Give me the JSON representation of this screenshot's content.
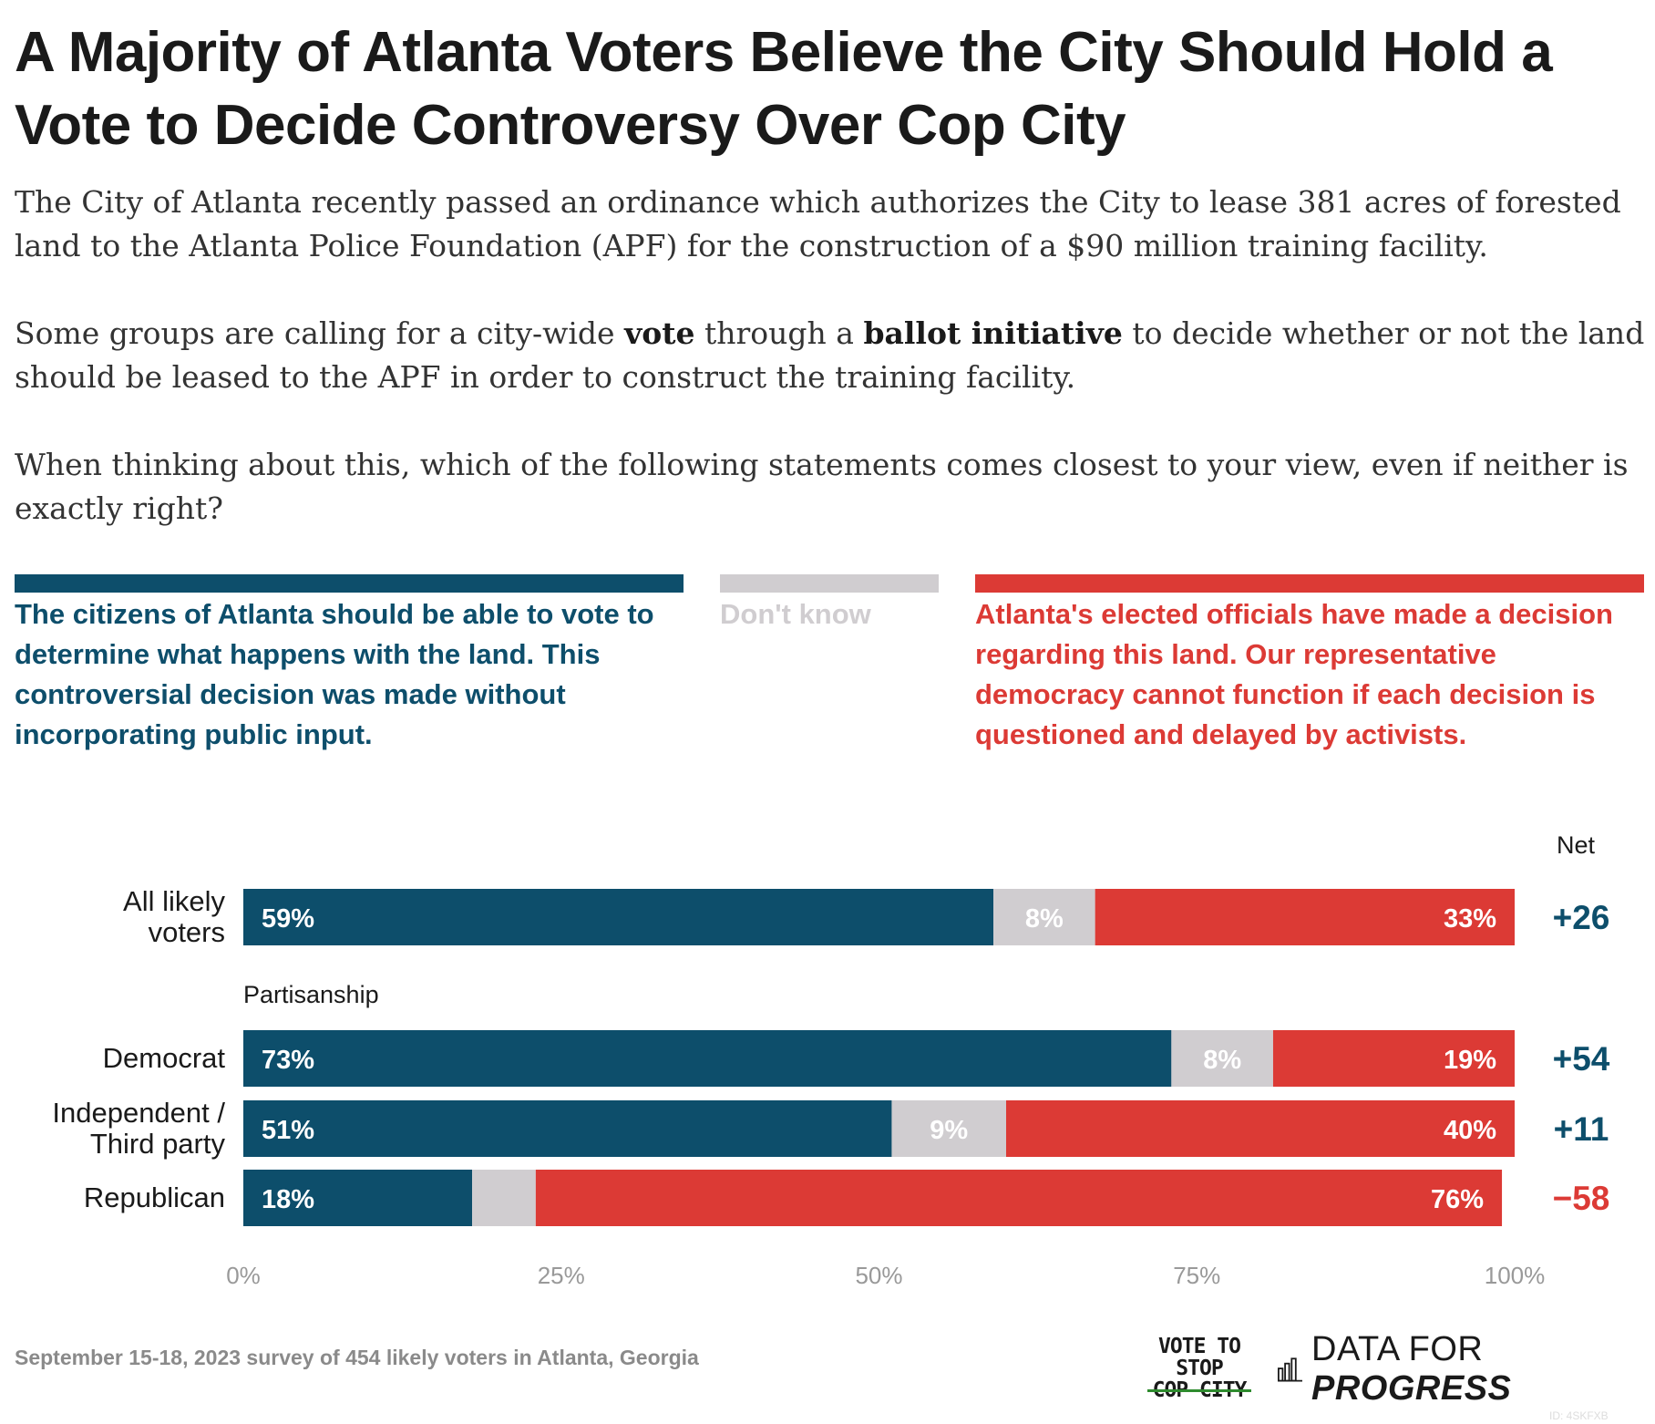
{
  "title": "A Majority of Atlanta Voters Believe the City Should Hold a Vote to Decide Controversy Over Cop City",
  "subtitle": {
    "p1": "The City of Atlanta recently passed an ordinance which authorizes the City to lease 381 acres of forested land to the Atlanta Police Foundation (APF) for the construction of a $90 million training facility.",
    "p2_a": "Some groups are calling for a city-wide ",
    "p2_b": "vote",
    "p2_c": " through a ",
    "p2_d": "ballot initiative",
    "p2_e": " to decide whether or not the land should be leased to the APF in order to construct the training facility.",
    "p3": "When thinking about this, which of the following statements comes closest to your view, even if neither is exactly right?"
  },
  "legend": {
    "vote": "The citizens of Atlanta should be able to vote to determine what happens with the land. This controversial decision was made without incorporating public input.",
    "dont_know": "Don't know",
    "officials": "Atlanta's elected officials have made a decision regarding this land. Our representative democracy cannot function if each decision is questioned and delayed by activists."
  },
  "colors": {
    "vote": "#0d4e6b",
    "dont_know": "#d0cdd0",
    "officials": "#dc3a35",
    "axis_text": "#999999"
  },
  "net_header": "Net",
  "chart_data": {
    "type": "bar",
    "orientation": "horizontal",
    "stacked": true,
    "xlim": [
      0,
      100
    ],
    "x_ticks": [
      "0%",
      "25%",
      "50%",
      "75%",
      "100%"
    ],
    "group_label": "Partisanship",
    "categories": [
      "All likely voters",
      "Democrat",
      "Independent / Third party",
      "Republican"
    ],
    "series": [
      {
        "name": "The citizens of Atlanta should be able to vote",
        "values": [
          59,
          73,
          51,
          18
        ]
      },
      {
        "name": "Don't know",
        "values": [
          8,
          8,
          9,
          5
        ]
      },
      {
        "name": "Atlanta's elected officials have made a decision",
        "values": [
          33,
          19,
          40,
          76
        ]
      }
    ],
    "value_labels": [
      [
        "59%",
        "73%",
        "51%",
        "18%"
      ],
      [
        "8%",
        "8%",
        "9%",
        ""
      ],
      [
        "33%",
        "19%",
        "40%",
        "76%"
      ]
    ],
    "net": [
      "+26",
      "+54",
      "+11",
      "−58"
    ],
    "net_positive": [
      true,
      true,
      true,
      false
    ]
  },
  "footer": "September 15-18, 2023 survey of 454 likely voters in Atlanta, Georgia",
  "logo_vote": {
    "l1": "VOTE TO",
    "l2": "STOP",
    "l3": "COP CITY"
  },
  "logo_dfp": {
    "a": "DATA FOR ",
    "b": "PROGRESS"
  },
  "id_tag": "ID: 4SKFXB"
}
